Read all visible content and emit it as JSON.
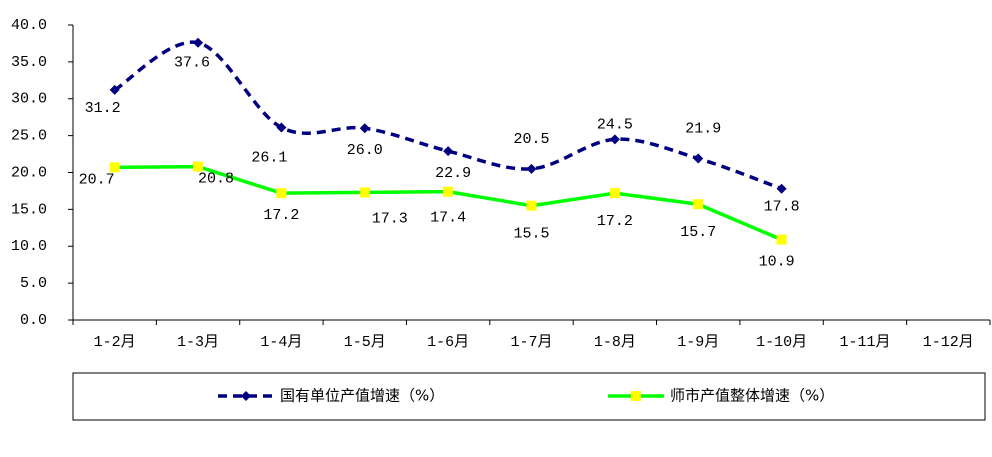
{
  "chart_data": {
    "type": "line",
    "categories": [
      "1-2月",
      "1-3月",
      "1-4月",
      "1-5月",
      "1-6月",
      "1-7月",
      "1-8月",
      "1-9月",
      "1-10月",
      "1-11月",
      "1-12月"
    ],
    "series": [
      {
        "name": "国有单位产值增速（%）",
        "color": "#000080",
        "dashed": true,
        "smooth": true,
        "marker": "diamond",
        "values": [
          31.2,
          37.6,
          26.1,
          26.0,
          22.9,
          20.5,
          24.5,
          21.9,
          17.8,
          null,
          null
        ],
        "value_labels": [
          "31.2",
          "37.6",
          "26.1",
          "26.0",
          "22.9",
          "20.5",
          "24.5",
          "21.9",
          "17.8",
          null,
          null
        ]
      },
      {
        "name": "师市产值整体增速（%）",
        "color": "#00ff00",
        "marker_color": "#ffff00",
        "dashed": false,
        "smooth": false,
        "marker": "square",
        "values": [
          20.7,
          20.8,
          17.2,
          17.3,
          17.4,
          15.5,
          17.2,
          15.7,
          10.9,
          null,
          null
        ],
        "value_labels": [
          "20.7",
          "20.8",
          "17.2",
          "17.3",
          "17.4",
          "15.5",
          "17.2",
          "15.7",
          "10.9",
          null,
          null
        ]
      }
    ],
    "ylim": [
      0,
      40
    ],
    "yticks": [
      {
        "value": 0,
        "label": "0.0"
      },
      {
        "value": 5,
        "label": "5.0"
      },
      {
        "value": 10,
        "label": "10.0"
      },
      {
        "value": 15,
        "label": "15.0"
      },
      {
        "value": 20,
        "label": "20.0"
      },
      {
        "value": 25,
        "label": "25.0"
      },
      {
        "value": 30,
        "label": "30.0"
      },
      {
        "value": 35,
        "label": "35.0"
      },
      {
        "value": 40,
        "label": "40.0"
      }
    ],
    "grid": false,
    "legend": "bottom"
  }
}
